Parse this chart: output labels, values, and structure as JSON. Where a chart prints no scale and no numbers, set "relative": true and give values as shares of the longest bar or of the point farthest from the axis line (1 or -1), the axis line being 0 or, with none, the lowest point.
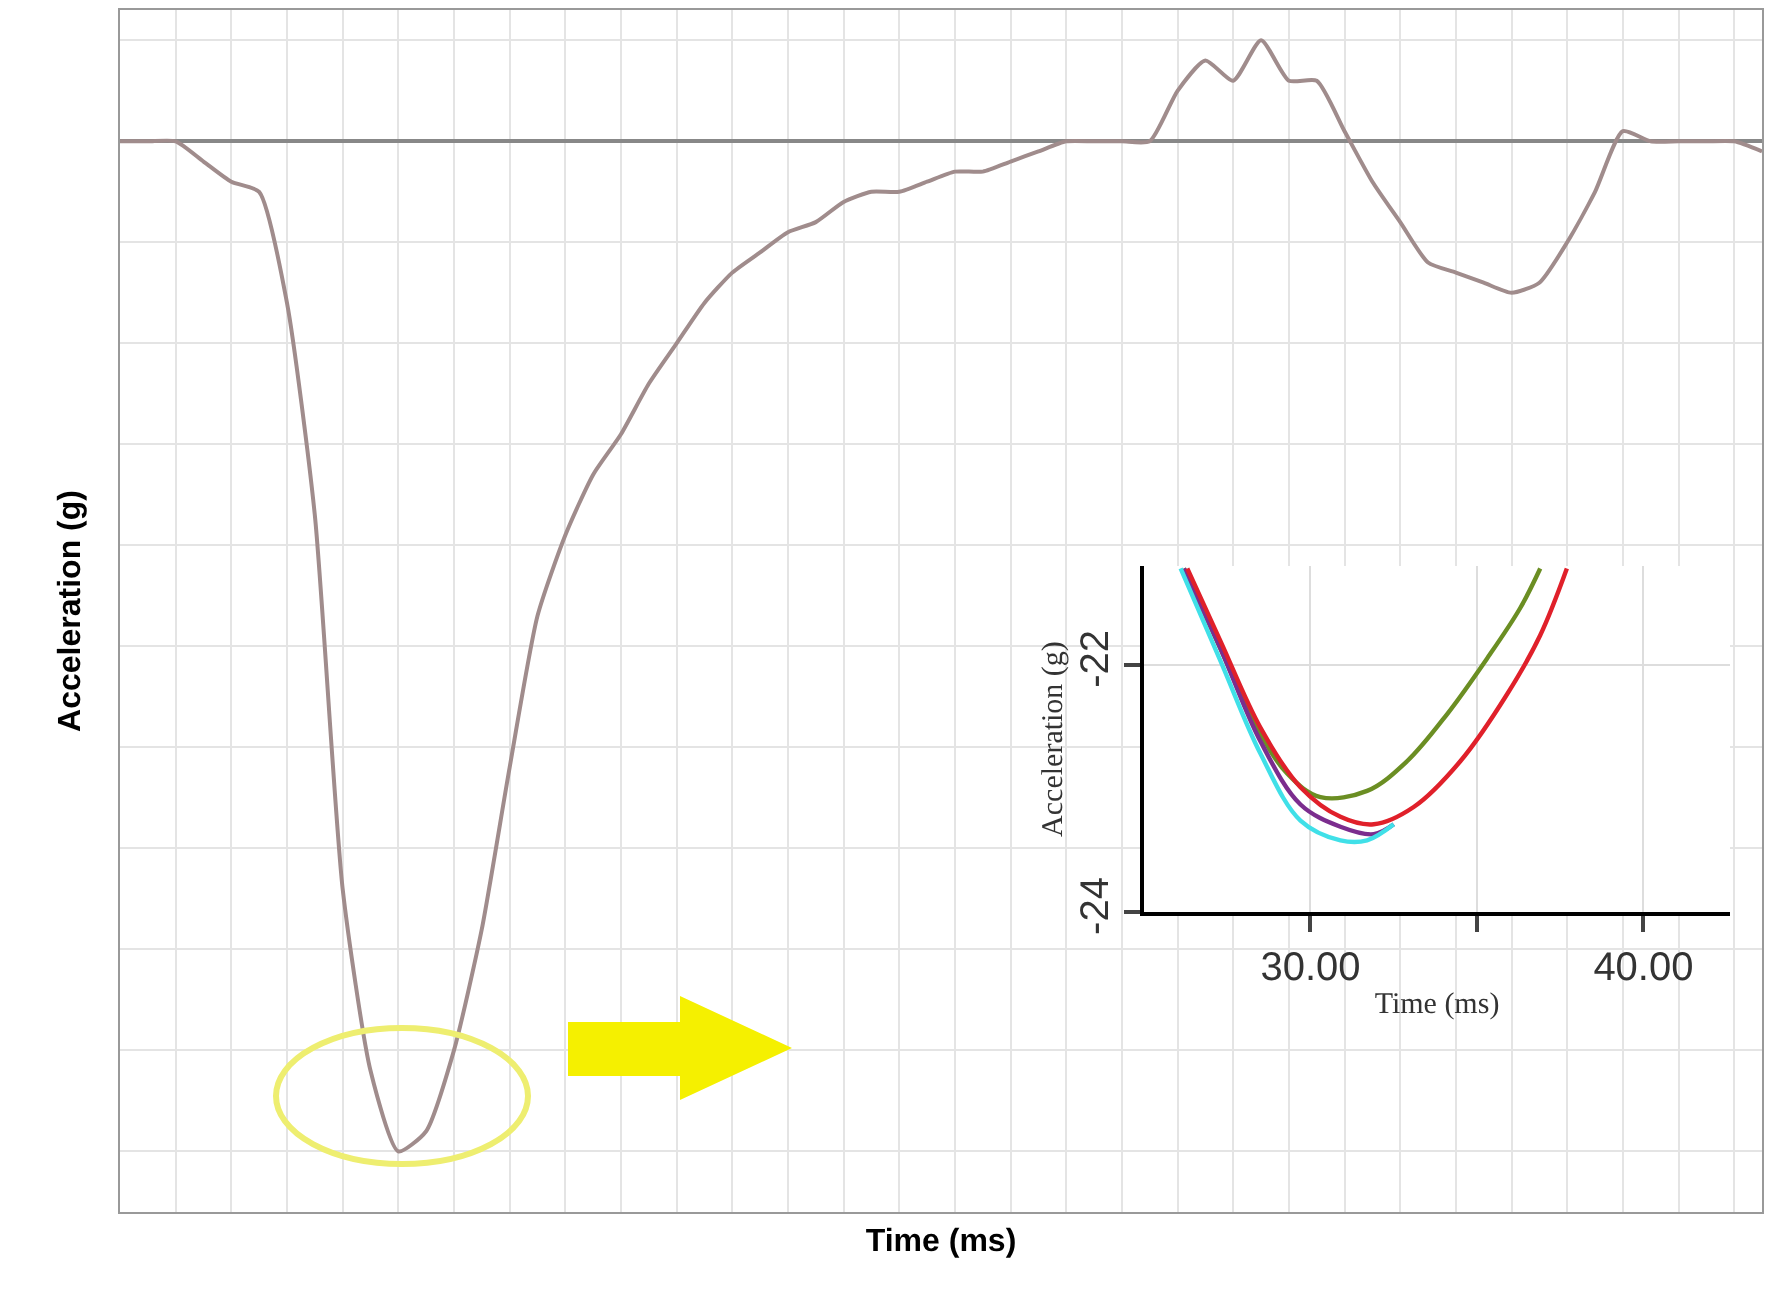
{
  "chart_data": [
    {
      "type": "line",
      "relative": true,
      "xlabel": "Time (ms)",
      "ylabel": "Acceleration (g)",
      "grid": true,
      "color": "#a08c8c",
      "categories": [
        null,
        null,
        null,
        null,
        null,
        null,
        null,
        null,
        null,
        null,
        null,
        null,
        null,
        null,
        null,
        null,
        null,
        null,
        null,
        null,
        null,
        null,
        null,
        null,
        null,
        null,
        null,
        null,
        null,
        null,
        null,
        null,
        null,
        null,
        null,
        null,
        null,
        null,
        null,
        null,
        null,
        null,
        null,
        null,
        null,
        null,
        null,
        null,
        null,
        null,
        null,
        null,
        null,
        null,
        null,
        null,
        null,
        null,
        null,
        null
      ],
      "values": [
        0,
        0,
        0,
        -0.02,
        -0.04,
        -0.05,
        -0.16,
        -0.37,
        -0.74,
        -0.92,
        -1,
        -0.98,
        -0.9,
        -0.78,
        -0.62,
        -0.47,
        -0.39,
        -0.33,
        -0.29,
        -0.24,
        -0.2,
        -0.16,
        -0.13,
        -0.11,
        -0.09,
        -0.08,
        -0.06,
        -0.05,
        -0.05,
        -0.04,
        -0.03,
        -0.03,
        -0.02,
        -0.01,
        0,
        0,
        0,
        0,
        0.05,
        0.08,
        0.06,
        0.1,
        0.06,
        0.06,
        0.01,
        -0.04,
        -0.08,
        -0.12,
        -0.13,
        -0.14,
        -0.15,
        -0.14,
        -0.1,
        -0.05,
        0.01,
        0,
        0,
        0,
        0,
        -0.01
      ]
    },
    {
      "type": "line",
      "xlabel": "Time (ms)",
      "ylabel": "Acceleration (g)",
      "grid": true,
      "xlim": [
        25,
        42.6
      ],
      "xticks": [
        {
          "value": 30,
          "label": "30.00"
        },
        {
          "value": 35,
          "label": null
        },
        {
          "value": 40,
          "label": "40.00"
        }
      ],
      "ylim": [
        -24,
        -21.2
      ],
      "yticks": [
        -24,
        -22
      ],
      "series": [
        {
          "color": "#6b8e23",
          "x": [
            26.2,
            27.3,
            28.3,
            29.3,
            30.3,
            31.7,
            32.9,
            34.1,
            35.3,
            36.3,
            36.9
          ],
          "values": [
            -21.22,
            -21.87,
            -22.46,
            -22.88,
            -23.07,
            -23.02,
            -22.78,
            -22.4,
            -21.95,
            -21.54,
            -21.22
          ]
        },
        {
          "color": "#7b2d8e",
          "x": [
            26.2,
            27.3,
            28.5,
            29.7,
            30.9,
            31.9,
            32.5
          ],
          "values": [
            -21.22,
            -21.87,
            -22.62,
            -23.13,
            -23.31,
            -23.37,
            -23.29
          ]
        },
        {
          "color": "#40e0e8",
          "x": [
            26.1,
            27.3,
            28.5,
            29.7,
            30.9,
            31.7,
            32.5
          ],
          "values": [
            -21.22,
            -21.97,
            -22.72,
            -23.26,
            -23.42,
            -23.42,
            -23.29
          ]
        },
        {
          "color": "#e0202a",
          "x": [
            26.3,
            27.3,
            28.5,
            29.7,
            30.9,
            31.9,
            33.1,
            34.5,
            35.9,
            36.9,
            37.7
          ],
          "values": [
            -21.22,
            -21.81,
            -22.51,
            -22.99,
            -23.23,
            -23.29,
            -23.15,
            -22.78,
            -22.24,
            -21.76,
            -21.22
          ]
        }
      ]
    }
  ]
}
